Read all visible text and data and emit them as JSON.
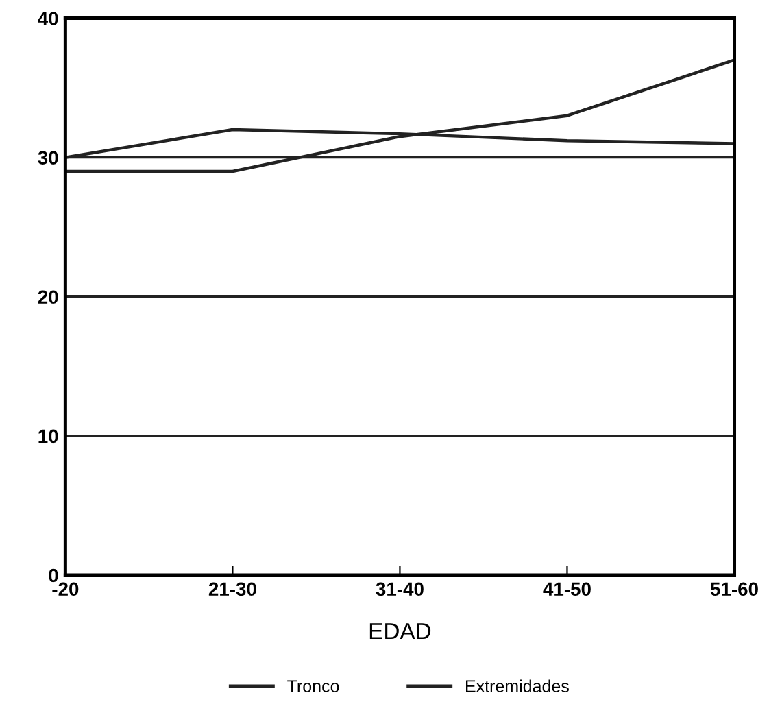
{
  "chart_data": {
    "type": "line",
    "xlabel": "EDAD",
    "categories": [
      "-20",
      "21-30",
      "31-40",
      "41-50",
      "51-60"
    ],
    "series": [
      {
        "name": "Tronco",
        "color": "#222222",
        "values": [
          30,
          32,
          31.7,
          31.2,
          31
        ]
      },
      {
        "name": "Extremidades",
        "color": "#222222",
        "values": [
          29,
          29,
          31.5,
          33,
          37
        ]
      }
    ],
    "ylim": [
      0,
      40
    ],
    "yticks": [
      0,
      10,
      20,
      30,
      40
    ],
    "grid": "y",
    "legend": "bottom",
    "marker": "none",
    "line_style": "solid"
  }
}
